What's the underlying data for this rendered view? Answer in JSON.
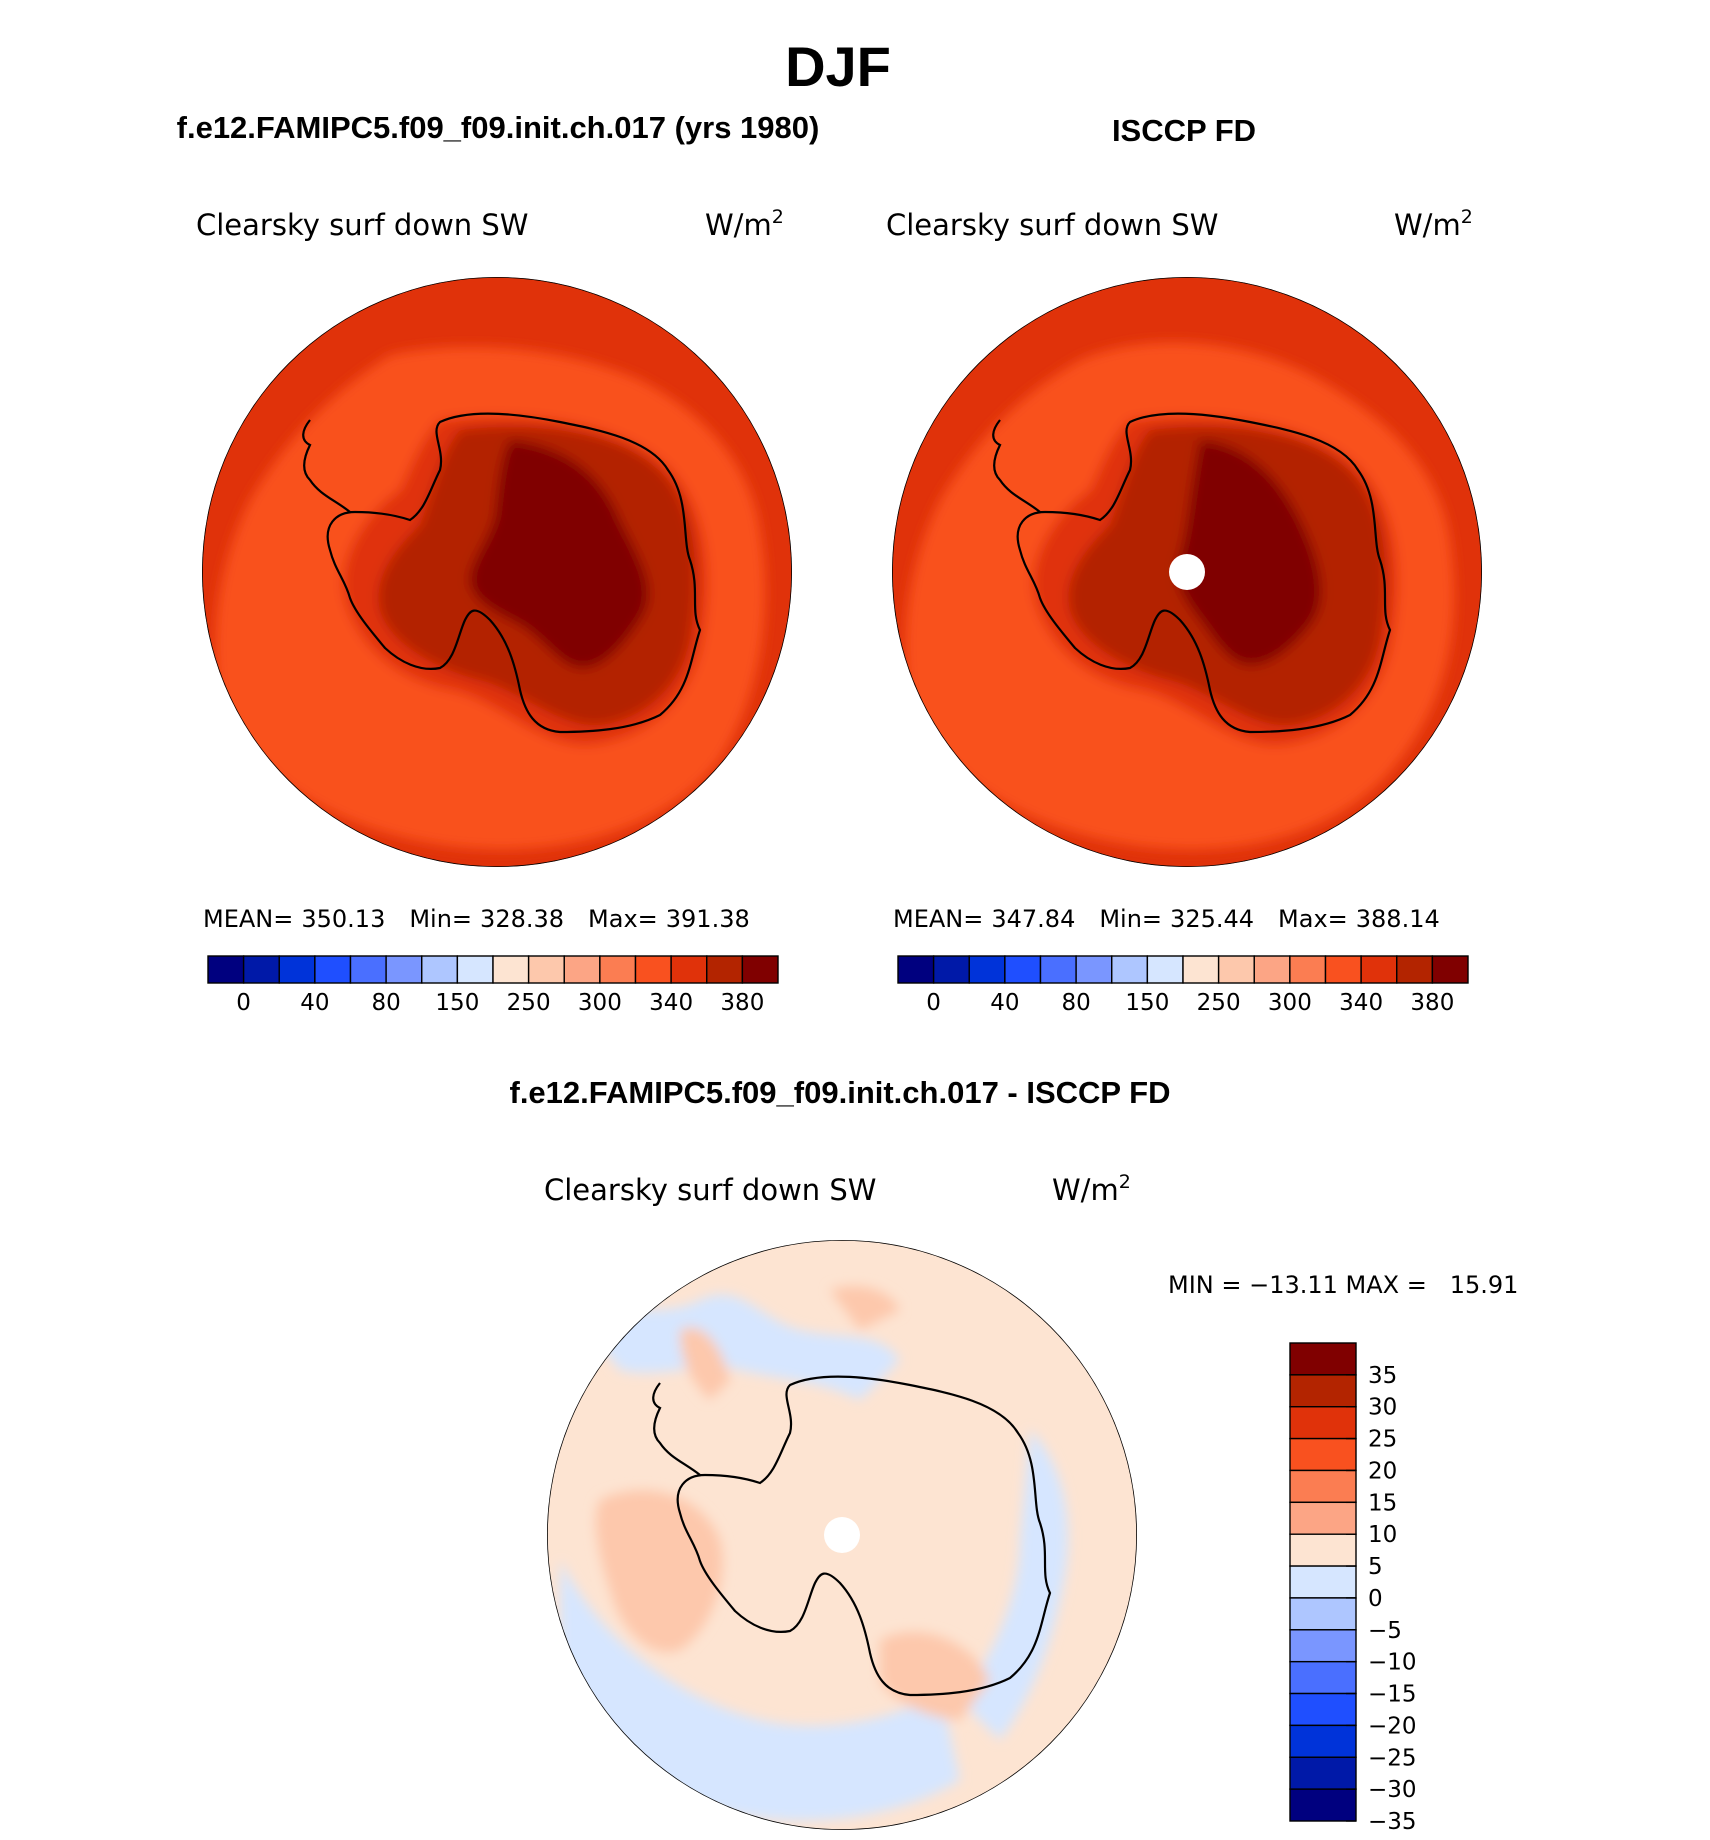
{
  "figure": {
    "title": "DJF",
    "subtitle_left": "f.e12.FAMIPC5.f09_f09.init.ch.017 (yrs 1980)",
    "subtitle_right": "ISCCP FD",
    "subtitle_bottom": "f.e12.FAMIPC5.f09_f09.init.ch.017 - ISCCP FD"
  },
  "chart_data": [
    {
      "type": "heatmap",
      "projection": "south-polar-stereographic",
      "variable": "Clearsky surf down SW",
      "units": "W/m²",
      "units_base": "W/m",
      "units_exp": "2",
      "stats": {
        "mean": "350.13",
        "min": "328.38",
        "max": "391.38"
      },
      "stat_labels": {
        "mean": "MEAN=",
        "min": "Min=",
        "max": "Max="
      },
      "colorbar": {
        "colors": [
          "#00007f",
          "#0019a8",
          "#0033d9",
          "#1f4fff",
          "#4a6fff",
          "#7a96ff",
          "#aec6ff",
          "#d6e6ff",
          "#fde4d2",
          "#fdc8ac",
          "#fca585",
          "#fb7d52",
          "#f9511f",
          "#e0320a",
          "#b32400",
          "#800000"
        ],
        "tick_labels": [
          "0",
          "40",
          "80",
          "150",
          "250",
          "300",
          "340",
          "380"
        ]
      }
    },
    {
      "type": "heatmap",
      "projection": "south-polar-stereographic",
      "variable": "Clearsky surf down SW",
      "units": "W/m²",
      "units_base": "W/m",
      "units_exp": "2",
      "stats": {
        "mean": "347.84",
        "min": "325.44",
        "max": "388.14"
      },
      "stat_labels": {
        "mean": "MEAN=",
        "min": "Min=",
        "max": "Max="
      },
      "colorbar": {
        "colors": [
          "#00007f",
          "#0019a8",
          "#0033d9",
          "#1f4fff",
          "#4a6fff",
          "#7a96ff",
          "#aec6ff",
          "#d6e6ff",
          "#fde4d2",
          "#fdc8ac",
          "#fca585",
          "#fb7d52",
          "#f9511f",
          "#e0320a",
          "#b32400",
          "#800000"
        ],
        "tick_labels": [
          "0",
          "40",
          "80",
          "150",
          "250",
          "300",
          "340",
          "380"
        ]
      }
    },
    {
      "type": "heatmap",
      "projection": "south-polar-stereographic",
      "variable": "Clearsky surf down SW",
      "units": "W/m²",
      "units_base": "W/m",
      "units_exp": "2",
      "stats_line": "MIN = −13.11 MAX =   15.91",
      "colorbar": {
        "orientation": "vertical",
        "colors_top_to_bottom": [
          "#800000",
          "#b32400",
          "#e0320a",
          "#f9511f",
          "#fb7d52",
          "#fca585",
          "#fde4d2",
          "#d6e6ff",
          "#aec6ff",
          "#7a96ff",
          "#4a6fff",
          "#1f4fff",
          "#0033d9",
          "#0019a8",
          "#00007f"
        ],
        "tick_labels": [
          "35",
          "30",
          "25",
          "20",
          "15",
          "10",
          "5",
          "0",
          "−5",
          "−10",
          "−15",
          "−20",
          "−25",
          "−30",
          "−35"
        ]
      }
    }
  ]
}
